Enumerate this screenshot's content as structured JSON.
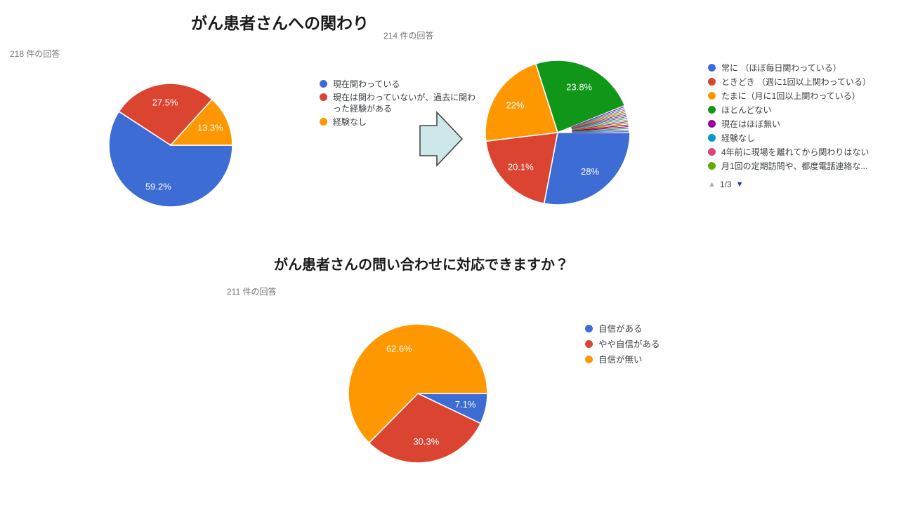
{
  "colors": {
    "blue": "#3D6CD5",
    "red": "#DB4430",
    "orange": "#FF9800",
    "green": "#109618",
    "purple": "#990099",
    "cyan": "#0099C6",
    "pink": "#DD4477",
    "olive": "#66AA00",
    "title_text": "#1A1A1A",
    "subtitle_text": "#757575",
    "legend_text": "#3C4043",
    "percent_label_text": "#FFFFFF",
    "arrow_fill": "#CEE7E8",
    "arrow_stroke": "#3F3F3F",
    "pagination_up": "#ABABAB",
    "pagination_down": "#2231CC"
  },
  "section1": {
    "title": "がん患者さんへの関わり",
    "pagination": {
      "label": "1/3"
    }
  },
  "section2": {
    "title": "がん患者さんの問い合わせに対応できますか？"
  },
  "chart_data": [
    {
      "type": "pie",
      "name": "involvement-before",
      "title": "がん患者さんへの関わり",
      "responses": "218 件の回答",
      "start_angle": "3-oclock",
      "direction": "clockwise",
      "label_format": "percent",
      "slices": [
        {
          "label": "現在関わっている",
          "value": 59.2,
          "color": "#3D6CD5"
        },
        {
          "label": "現在は関わっていないが、過去に関わった経験がある",
          "value": 27.5,
          "color": "#DB4430"
        },
        {
          "label": "経験なし",
          "value": 13.3,
          "color": "#FF9800"
        }
      ]
    },
    {
      "type": "pie",
      "name": "involvement-after",
      "title": "がん患者さんへの関わり",
      "responses": "214 件の回答",
      "start_angle": "3-oclock",
      "direction": "clockwise",
      "label_format": "percent",
      "slices": [
        {
          "label": "常に （ほぼ毎日関わっている）",
          "value": 28,
          "color": "#3D6CD5"
        },
        {
          "label": "ときどき （週に1回以上関わっている）",
          "value": 20.1,
          "color": "#DB4430"
        },
        {
          "label": "たまに（月に1回以上関わっている）",
          "value": 22,
          "color": "#FF9800"
        },
        {
          "label": "ほとんどない",
          "value": 23.8,
          "color": "#109618"
        }
      ],
      "others_value": 6.1,
      "sliver_colors": [
        "#990099",
        "#0099C6",
        "#DD4477",
        "#66AA00",
        "#B82E2E",
        "#316395",
        "#994499",
        "#22AA99",
        "#AAAA11",
        "#6633CC",
        "#E67300",
        "#8B0707",
        "#651067",
        "#329262",
        "#5574A6",
        "#3B3EAC"
      ],
      "legend": [
        {
          "label": "常に （ほぼ毎日関わっている）",
          "color": "#3D6CD5"
        },
        {
          "label": "ときどき （週に1回以上関わっている）",
          "color": "#DB4430"
        },
        {
          "label": "たまに（月に1回以上関わっている）",
          "color": "#FF9800"
        },
        {
          "label": "ほとんどない",
          "color": "#109618"
        },
        {
          "label": "現在はほぼ無い",
          "color": "#990099"
        },
        {
          "label": "経験なし",
          "color": "#0099C6"
        },
        {
          "label": "4年前に現場を離れてから関わりはない",
          "color": "#DD4477"
        },
        {
          "label": "月1回の定期訪問や、都度電話連絡な...",
          "color": "#66AA00"
        }
      ],
      "legend_pagination": "1/3"
    },
    {
      "type": "pie",
      "name": "confidence",
      "title": "がん患者さんの問い合わせに対応できますか？",
      "responses": "211 件の回答",
      "start_angle": "3-oclock",
      "direction": "clockwise",
      "label_format": "percent",
      "slices": [
        {
          "label": "自信がある",
          "value": 7.1,
          "color": "#3D6CD5"
        },
        {
          "label": "やや自信がある",
          "value": 30.3,
          "color": "#DB4430"
        },
        {
          "label": "自信が無い",
          "value": 62.6,
          "color": "#FF9800"
        }
      ]
    }
  ]
}
